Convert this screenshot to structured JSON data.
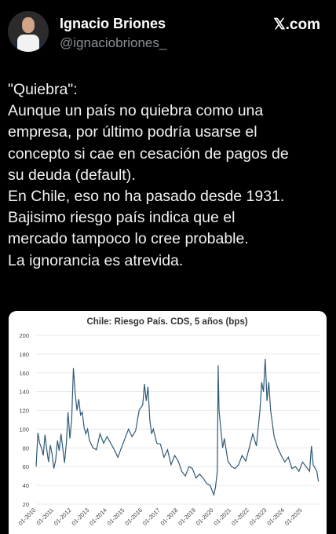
{
  "header": {
    "name": "Ignacio Briones",
    "handle": "@ignaciobriones_",
    "brand": "𝕏.com"
  },
  "tweet": {
    "lines": [
      "\"Quiebra\":",
      "Aunque un país no quiebra como una",
      "empresa, por último podría usarse el",
      "concepto si cae en cesación de pagos de",
      "su deuda (default).",
      "En Chile, eso no ha pasado desde 1931.",
      "Bajisimo riesgo país indica que el",
      "mercado tampoco lo cree probable.",
      "La ignorancia es atrevida."
    ]
  },
  "chart_data": {
    "type": "line",
    "title": "Chile: Riesgo País. CDS, 5 años (bps)",
    "ylim": [
      20,
      200
    ],
    "yticks": [
      20,
      40,
      60,
      80,
      100,
      120,
      140,
      160,
      180,
      200
    ],
    "xlim": [
      2010.0,
      2026.0
    ],
    "xtick_labels": [
      "01-2010",
      "01-2011",
      "01-2012",
      "01-2013",
      "01-2014",
      "01-2015",
      "01-2016",
      "01-2017",
      "01-2018",
      "01-2019",
      "01-2020",
      "01-2021",
      "01-2022",
      "01-2023",
      "01-2024",
      "01-2025"
    ],
    "xtick_positions": [
      2010,
      2011,
      2012,
      2013,
      2014,
      2015,
      2016,
      2017,
      2018,
      2019,
      2020,
      2021,
      2022,
      2023,
      2024,
      2025
    ],
    "line_color": "#2f5a78",
    "series": [
      {
        "x": [
          2010.0,
          2010.1,
          2010.2,
          2010.3,
          2010.4,
          2010.5,
          2010.6,
          2010.7,
          2010.8,
          2010.9,
          2011.0,
          2011.1,
          2011.2,
          2011.3,
          2011.4,
          2011.5,
          2011.6,
          2011.7,
          2011.8,
          2011.9,
          2012.0,
          2012.1,
          2012.2,
          2012.3,
          2012.4,
          2012.5,
          2012.6,
          2012.7,
          2012.8,
          2012.9,
          2013.0,
          2013.2,
          2013.4,
          2013.6,
          2013.8,
          2014.0,
          2014.2,
          2014.4,
          2014.6,
          2014.8,
          2015.0,
          2015.2,
          2015.4,
          2015.6,
          2015.8,
          2016.0,
          2016.1,
          2016.2,
          2016.3,
          2016.4,
          2016.5,
          2016.6,
          2016.8,
          2017.0,
          2017.2,
          2017.4,
          2017.6,
          2017.8,
          2018.0,
          2018.2,
          2018.4,
          2018.6,
          2018.8,
          2019.0,
          2019.2,
          2019.4,
          2019.6,
          2019.8,
          2019.9,
          2020.0,
          2020.1,
          2020.2,
          2020.25,
          2020.3,
          2020.4,
          2020.5,
          2020.6,
          2020.8,
          2021.0,
          2021.2,
          2021.4,
          2021.6,
          2021.8,
          2022.0,
          2022.2,
          2022.4,
          2022.6,
          2022.7,
          2022.8,
          2022.9,
          2023.0,
          2023.1,
          2023.2,
          2023.4,
          2023.6,
          2023.8,
          2024.0,
          2024.2,
          2024.4,
          2024.6,
          2024.8,
          2025.0,
          2025.2,
          2025.4,
          2025.5,
          2025.6,
          2025.8,
          2025.9
        ],
        "y": [
          60,
          96,
          85,
          80,
          72,
          94,
          78,
          65,
          83,
          73,
          58,
          67,
          88,
          77,
          95,
          80,
          64,
          85,
          118,
          90,
          110,
          165,
          138,
          120,
          132,
          115,
          118,
          102,
          95,
          100,
          88,
          80,
          78,
          95,
          85,
          92,
          85,
          78,
          70,
          80,
          90,
          100,
          92,
          98,
          120,
          126,
          148,
          130,
          145,
          110,
          95,
          100,
          85,
          84,
          70,
          78,
          62,
          72,
          66,
          55,
          50,
          60,
          58,
          48,
          52,
          48,
          42,
          40,
          35,
          30,
          38,
          55,
          168,
          120,
          100,
          80,
          90,
          66,
          60,
          58,
          62,
          72,
          66,
          80,
          95,
          82,
          120,
          150,
          140,
          175,
          130,
          150,
          120,
          92,
          80,
          72,
          65,
          70,
          58,
          60,
          55,
          65,
          60,
          55,
          82,
          62,
          55,
          44
        ]
      }
    ]
  }
}
